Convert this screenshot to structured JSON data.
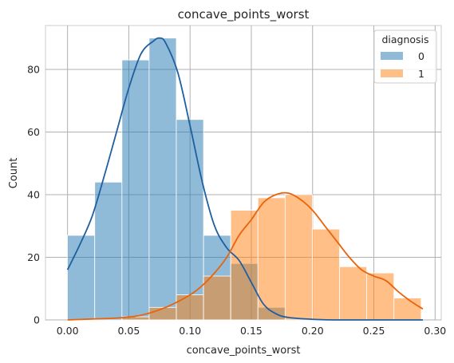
{
  "chart_data": {
    "type": "histogram",
    "title": "concave_points_worst",
    "xlabel": "concave_points_worst",
    "ylabel": "Count",
    "xlim": [
      -0.018,
      0.305
    ],
    "ylim": [
      0,
      94
    ],
    "xticks": [
      "0.00",
      "0.05",
      "0.10",
      "0.15",
      "0.20",
      "0.25",
      "0.30"
    ],
    "xtick_values": [
      0.0,
      0.05,
      0.1,
      0.15,
      0.2,
      0.25,
      0.3
    ],
    "yticks": [
      "0",
      "20",
      "40",
      "60",
      "80"
    ],
    "ytick_values": [
      0,
      20,
      40,
      60,
      80
    ],
    "grid": true,
    "legend": {
      "title": "diagnosis",
      "placement": "top-right"
    },
    "bin_edges": [
      0.0,
      0.0222,
      0.0444,
      0.0666,
      0.0888,
      0.111,
      0.1332,
      0.1554,
      0.1776,
      0.1998,
      0.222,
      0.2442,
      0.2664,
      0.2886
    ],
    "series": [
      {
        "name": "0",
        "color": "#1f77b4",
        "kde_color": "#1f5fa0",
        "counts": [
          27,
          44,
          83,
          90,
          64,
          27,
          18,
          4,
          0,
          0,
          0,
          0,
          0
        ],
        "kde": {
          "x": [
            0.0,
            0.01,
            0.02,
            0.03,
            0.04,
            0.05,
            0.06,
            0.07,
            0.075,
            0.08,
            0.09,
            0.1,
            0.11,
            0.12,
            0.13,
            0.14,
            0.15,
            0.16,
            0.17,
            0.18,
            0.2,
            0.22,
            0.25,
            0.29
          ],
          "y": [
            16,
            24,
            33,
            46,
            60,
            74,
            85,
            89,
            90,
            88.5,
            79,
            62,
            44,
            30,
            23,
            19,
            12,
            5,
            2,
            0.8,
            0.2,
            0,
            0,
            0
          ]
        }
      },
      {
        "name": "1",
        "color": "#ff7f0e",
        "kde_color": "#e8640c",
        "counts": [
          0,
          0,
          1,
          4,
          8,
          14,
          35,
          39,
          40,
          29,
          17,
          15,
          7
        ],
        "kde": {
          "x": [
            0.0,
            0.02,
            0.04,
            0.06,
            0.08,
            0.1,
            0.11,
            0.12,
            0.13,
            0.14,
            0.15,
            0.16,
            0.17,
            0.18,
            0.19,
            0.2,
            0.21,
            0.22,
            0.23,
            0.24,
            0.25,
            0.26,
            0.27,
            0.28,
            0.29
          ],
          "y": [
            0,
            0.3,
            0.6,
            1.5,
            4,
            8,
            11,
            15,
            20,
            27,
            32,
            37.5,
            40,
            40.5,
            38.5,
            35,
            30,
            25,
            20,
            16,
            14,
            12.5,
            9,
            6,
            3.5
          ]
        }
      }
    ]
  }
}
